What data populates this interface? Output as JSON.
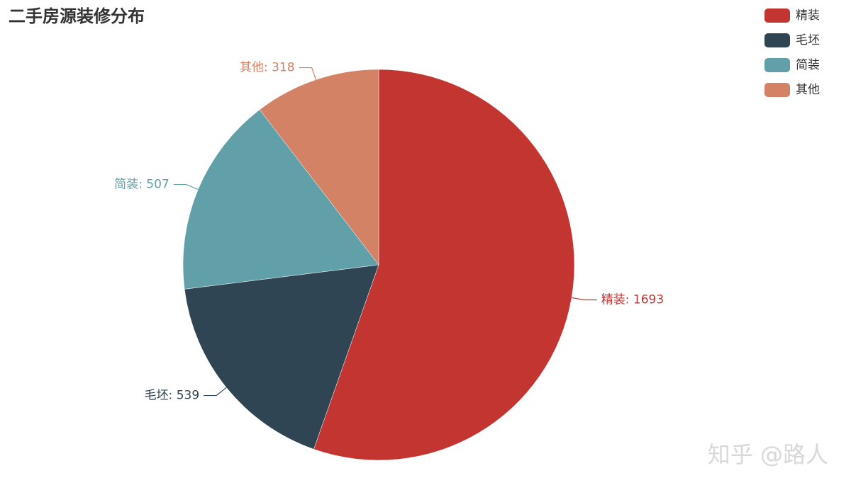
{
  "chart_data": {
    "type": "pie",
    "title": "二手房源装修分布",
    "categories": [
      "精装",
      "毛坯",
      "简装",
      "其他"
    ],
    "values": [
      1693,
      539,
      507,
      318
    ],
    "value_labels": [
      "精装: 1693",
      "毛坯: 539",
      "简装: 507",
      "其他: 318"
    ],
    "colors": [
      "#c23531",
      "#2f4554",
      "#61a0a8",
      "#d48265"
    ],
    "legend": "top-right"
  },
  "watermark": "知乎 @路人"
}
